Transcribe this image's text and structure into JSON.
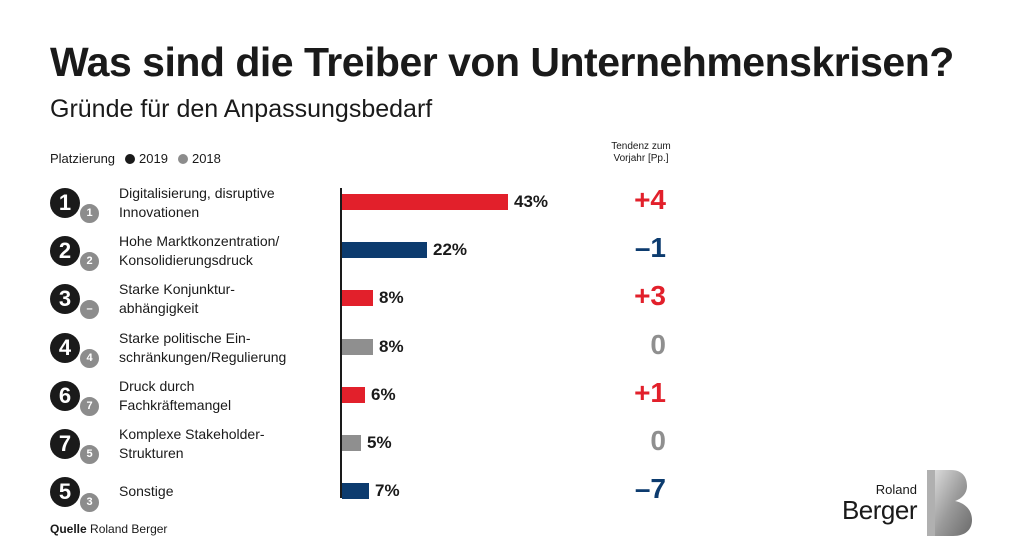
{
  "title": "Was sind die Treiber von Unternehmenskrisen?",
  "subtitle": "Gründe für den Anpassungsbedarf",
  "legend": {
    "label": "Platzierung",
    "items": [
      {
        "name": "2019",
        "color": "#1a1a1a"
      },
      {
        "name": "2018",
        "color": "#8c8c8c"
      }
    ]
  },
  "trend_header": {
    "line1": "Tendenz zum",
    "line2": "Vorjahr [Pp.]"
  },
  "colors": {
    "increase": "#e2202b",
    "decrease": "#0c3b6e",
    "neutral": "#8f8f8f"
  },
  "chart_data": {
    "type": "bar",
    "orientation": "horizontal",
    "title": "Was sind die Treiber von Unternehmenskrisen?",
    "subtitle": "Gründe für den Anpassungsbedarf",
    "unit": "%",
    "xlim": [
      0,
      43
    ],
    "rows": [
      {
        "rank2019": "1",
        "rank2018": "1",
        "line1": "Digitalisierung, disruptive",
        "line2": "Innovationen",
        "value": 43,
        "value_label": "43%",
        "trend": "+4",
        "trend_color": "#e2202b",
        "bar_color": "#e2202b"
      },
      {
        "rank2019": "2",
        "rank2018": "2",
        "line1": "Hohe Marktkonzentration/",
        "line2": "Konsolidierungsdruck",
        "value": 22,
        "value_label": "22%",
        "trend": "–1",
        "trend_color": "#0c3b6e",
        "bar_color": "#0c3b6e"
      },
      {
        "rank2019": "3",
        "rank2018": "–",
        "line1": "Starke Konjunktur-",
        "line2": "abhängigkeit",
        "value": 8,
        "value_label": "8%",
        "trend": "+3",
        "trend_color": "#e2202b",
        "bar_color": "#e2202b"
      },
      {
        "rank2019": "4",
        "rank2018": "4",
        "line1": "Starke politische Ein-",
        "line2": "schränkungen/Regulierung",
        "value": 8,
        "value_label": "8%",
        "trend": "0",
        "trend_color": "#8f8f8f",
        "bar_color": "#8f8f8f"
      },
      {
        "rank2019": "6",
        "rank2018": "7",
        "line1": "Druck durch",
        "line2": "Fachkräftemangel",
        "value": 6,
        "value_label": "6%",
        "trend": "+1",
        "trend_color": "#e2202b",
        "bar_color": "#e2202b"
      },
      {
        "rank2019": "7",
        "rank2018": "5",
        "line1": "Komplexe Stakeholder-",
        "line2": "Strukturen",
        "value": 5,
        "value_label": "5%",
        "trend": "0",
        "trend_color": "#8f8f8f",
        "bar_color": "#8f8f8f"
      },
      {
        "rank2019": "5",
        "rank2018": "3",
        "line1": "Sonstige",
        "line2": "",
        "value": 7,
        "value_label": "7%",
        "trend": "–7",
        "trend_color": "#0c3b6e",
        "bar_color": "#0c3b6e"
      }
    ]
  },
  "source": {
    "label": "Quelle",
    "text": "Roland Berger"
  },
  "logo": {
    "small": "Roland",
    "big": "Berger"
  }
}
